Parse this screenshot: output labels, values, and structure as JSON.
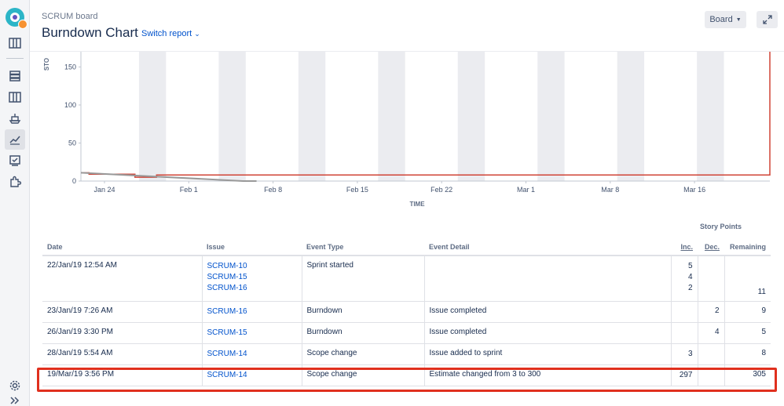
{
  "header": {
    "breadcrumb": "SCRUM board",
    "title": "Burndown Chart",
    "switch_report": "Switch report",
    "board_button": "Board"
  },
  "sidebar": {
    "items": [
      "board-icon",
      "backlog-icon",
      "active-sprints-icon",
      "releases-icon",
      "reports-icon",
      "issues-icon",
      "addons-icon"
    ],
    "bottom": [
      "settings-icon",
      "expand-sidebar-icon"
    ]
  },
  "chart_data": {
    "type": "line",
    "ylabel": "STO",
    "xlabel": "TIME",
    "y_ticks": [
      0,
      50,
      100,
      150
    ],
    "x_ticks": [
      "Jan 24",
      "Feb 1",
      "Feb 8",
      "Feb 15",
      "Feb 22",
      "Mar 1",
      "Mar 8",
      "Mar 16"
    ],
    "ylim": [
      0,
      170
    ],
    "series": [
      {
        "values": [
          [
            0,
            11
          ],
          [
            0.3,
            11
          ],
          [
            0.3,
            9
          ],
          [
            2,
            9
          ],
          [
            2,
            5
          ],
          [
            2.8,
            5
          ],
          [
            2.8,
            8
          ],
          [
            25.5,
            8
          ],
          [
            25.5,
            305
          ]
        ],
        "color": "#d04437"
      },
      {
        "values": [
          [
            0,
            11
          ],
          [
            6,
            0
          ],
          [
            6.5,
            0
          ]
        ],
        "color": "#999999"
      }
    ],
    "grid": true
  },
  "table": {
    "story_points_label": "Story Points",
    "headers": {
      "date": "Date",
      "issue": "Issue",
      "event_type": "Event Type",
      "event_detail": "Event Detail",
      "inc": "Inc.",
      "dec": "Dec.",
      "remaining": "Remaining"
    },
    "rows": [
      {
        "date": "22/Jan/19 12:54 AM",
        "issues": [
          "SCRUM-10",
          "SCRUM-15",
          "SCRUM-16"
        ],
        "event_type": "Sprint started",
        "event_detail": "",
        "inc": [
          "5",
          "4",
          "2"
        ],
        "dec": "",
        "remaining": "11"
      },
      {
        "date": "23/Jan/19 7:26 AM",
        "issues": [
          "SCRUM-16"
        ],
        "event_type": "Burndown",
        "event_detail": "Issue completed",
        "inc": [],
        "dec": "2",
        "remaining": "9"
      },
      {
        "date": "26/Jan/19 3:30 PM",
        "issues": [
          "SCRUM-15"
        ],
        "event_type": "Burndown",
        "event_detail": "Issue completed",
        "inc": [],
        "dec": "4",
        "remaining": "5"
      },
      {
        "date": "28/Jan/19 5:54 AM",
        "issues": [
          "SCRUM-14"
        ],
        "event_type": "Scope change",
        "event_detail": "Issue added to sprint",
        "inc": [
          "3"
        ],
        "dec": "",
        "remaining": "8"
      },
      {
        "date": "19/Mar/19 3:56 PM",
        "issues": [
          "SCRUM-14"
        ],
        "event_type": "Scope change",
        "event_detail": "Estimate changed from 3 to 300",
        "inc": [
          "297"
        ],
        "dec": "",
        "remaining": "305"
      }
    ]
  }
}
